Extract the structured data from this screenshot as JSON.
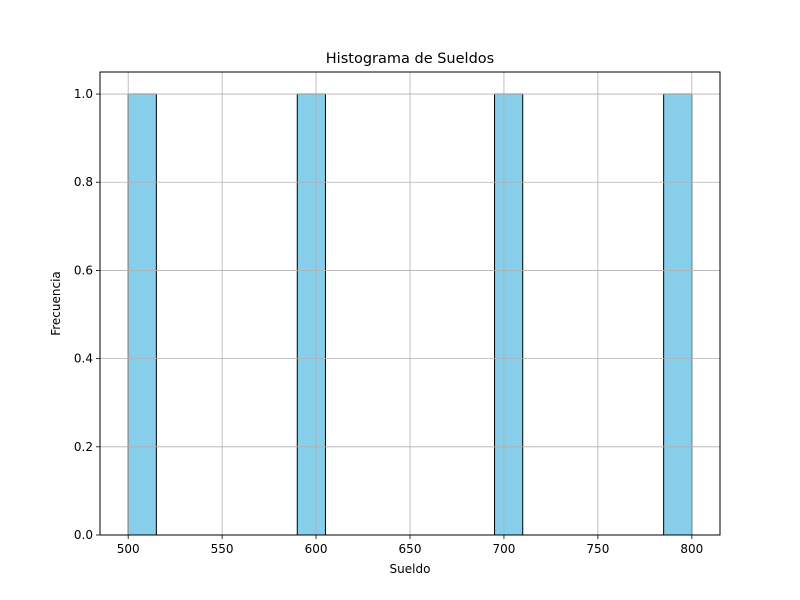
{
  "chart_data": {
    "type": "bar",
    "title": "Histograma de Sueldos",
    "xlabel": "Sueldo",
    "ylabel": "Frecuencia",
    "xlim": [
      485,
      815
    ],
    "ylim": [
      0,
      1.05
    ],
    "grid": true,
    "bins": [
      {
        "x0": 500,
        "x1": 515,
        "count": 1
      },
      {
        "x0": 590,
        "x1": 605,
        "count": 1
      },
      {
        "x0": 695,
        "x1": 710,
        "count": 1
      },
      {
        "x0": 785,
        "x1": 800,
        "count": 1
      }
    ],
    "x_ticks": [
      500,
      550,
      600,
      650,
      700,
      750,
      800
    ],
    "x_tick_labels": [
      "500",
      "550",
      "600",
      "650",
      "700",
      "750",
      "800"
    ],
    "y_ticks": [
      0,
      0.2,
      0.4,
      0.6,
      0.8,
      1.0
    ],
    "y_tick_labels": [
      "0.0",
      "0.2",
      "0.4",
      "0.6",
      "0.8",
      "1.0"
    ],
    "colors": {
      "bar_fill": "#87ceeb",
      "bar_edge": "#000000",
      "grid": "#b0b0b0",
      "axis": "#000000"
    }
  }
}
